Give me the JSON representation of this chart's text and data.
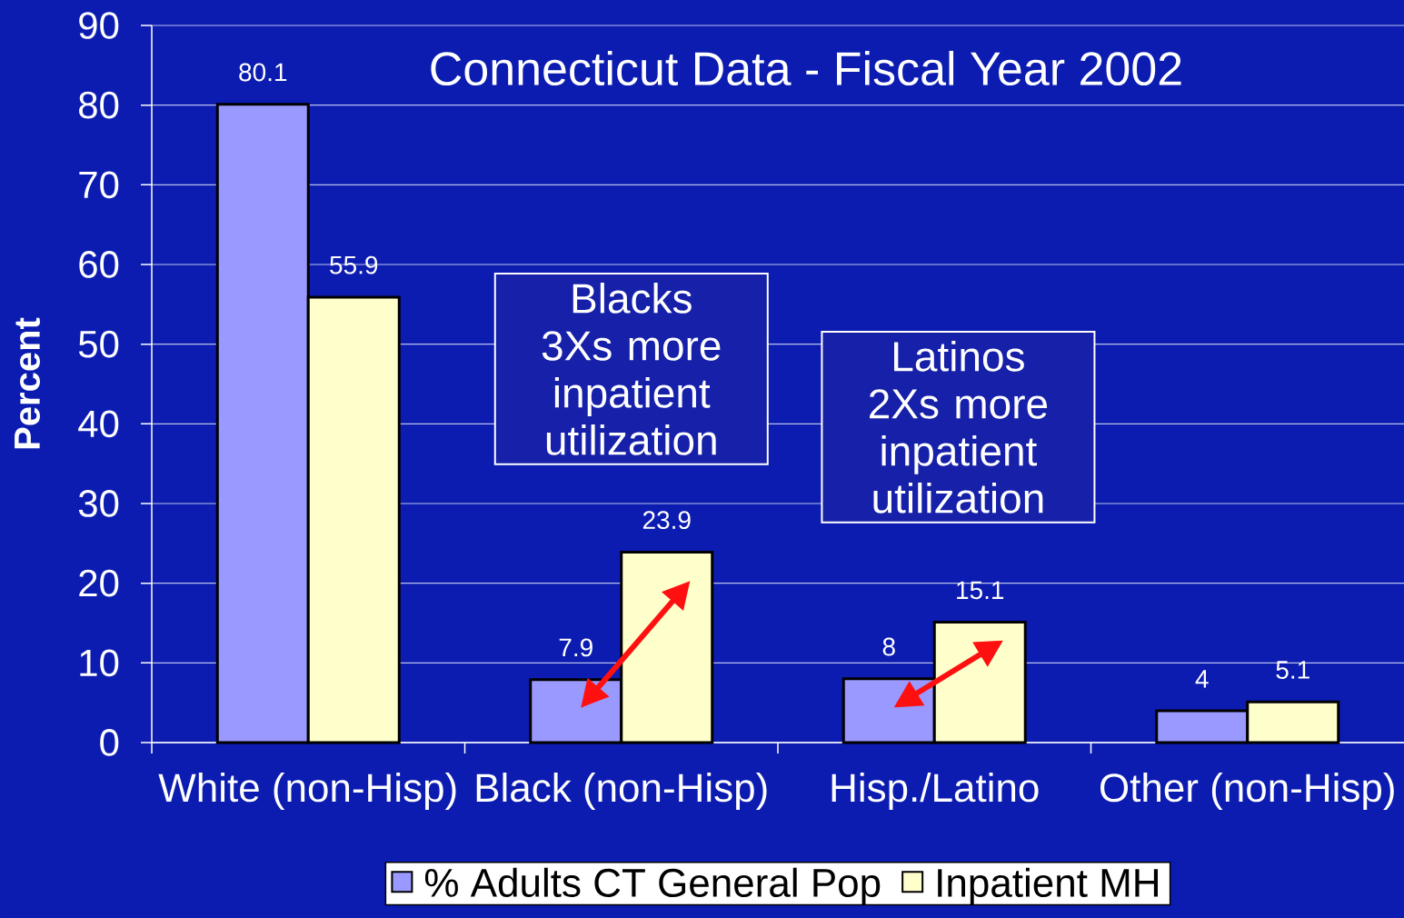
{
  "chart_data": {
    "type": "bar",
    "title": "Connecticut Data - Fiscal Year 2002",
    "ylabel": "Percent",
    "categories": [
      "White (non-Hisp)",
      "Black (non-Hisp)",
      "Hisp./Latino",
      "Other (non-Hisp)"
    ],
    "series": [
      {
        "name": "% Adults CT General Pop",
        "color": "#9999ff",
        "values": [
          80.1,
          7.9,
          8,
          4
        ]
      },
      {
        "name": "Inpatient MH",
        "color": "#ffffcc",
        "values": [
          55.9,
          23.9,
          15.1,
          5.1
        ]
      }
    ],
    "ylim": [
      0,
      90
    ],
    "yticks": [
      0,
      10,
      20,
      30,
      40,
      50,
      60,
      70,
      80,
      90
    ],
    "grid": "y",
    "legend": "bottom",
    "data_labels": true,
    "annotations": [
      "Blacks 3Xs more inpatient utilization",
      "Latinos 2Xs more inpatient utilization"
    ]
  }
}
